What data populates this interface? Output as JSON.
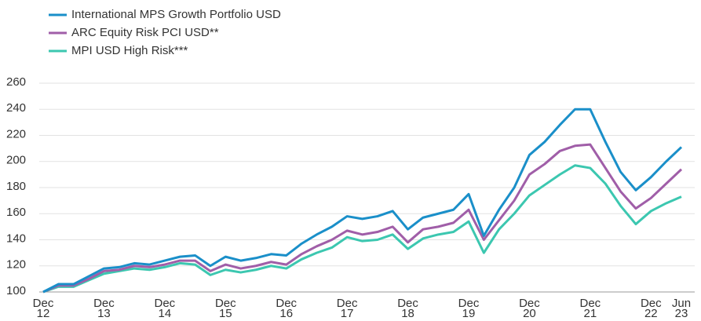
{
  "chart_data": {
    "type": "line",
    "categories": [
      "Dec 12",
      null,
      null,
      null,
      "Dec 13",
      null,
      null,
      null,
      "Dec 14",
      null,
      null,
      null,
      "Dec 15",
      null,
      null,
      null,
      "Dec 16",
      null,
      null,
      null,
      "Dec 17",
      null,
      null,
      null,
      "Dec 18",
      null,
      null,
      null,
      "Dec 19",
      null,
      null,
      null,
      "Dec 20",
      null,
      null,
      null,
      "Dec 21",
      null,
      null,
      null,
      "Dec 22",
      null,
      "Jun 23"
    ],
    "series": [
      {
        "name": "International MPS Growth Portfolio USD",
        "color": "#1a8fc9",
        "values": [
          100,
          106,
          106,
          112,
          118,
          119,
          122,
          121,
          124,
          127,
          128,
          120,
          127,
          124,
          126,
          129,
          128,
          137,
          144,
          150,
          158,
          156,
          158,
          162,
          148,
          157,
          160,
          163,
          175,
          143,
          163,
          180,
          205,
          215,
          228,
          240,
          240,
          215,
          192,
          178,
          188,
          200,
          211
        ]
      },
      {
        "name": "ARC Equity Risk PCI USD**",
        "color": "#a05ea8",
        "values": [
          100,
          105,
          105,
          110,
          116,
          117,
          120,
          119,
          121,
          124,
          124,
          116,
          121,
          118,
          120,
          123,
          121,
          129,
          135,
          140,
          147,
          144,
          146,
          150,
          138,
          148,
          150,
          153,
          163,
          140,
          155,
          170,
          190,
          198,
          208,
          212,
          213,
          195,
          177,
          164,
          172,
          183,
          194
        ]
      },
      {
        "name": "MPI USD High Risk***",
        "color": "#3cc7b0",
        "values": [
          100,
          104,
          104,
          109,
          114,
          116,
          118,
          117,
          119,
          122,
          121,
          113,
          117,
          115,
          117,
          120,
          118,
          125,
          130,
          134,
          142,
          139,
          140,
          144,
          133,
          141,
          144,
          146,
          154,
          130,
          148,
          160,
          174,
          182,
          190,
          197,
          195,
          183,
          166,
          152,
          162,
          168,
          173
        ]
      }
    ],
    "ylim": [
      100,
      260
    ],
    "yticks": [
      100,
      120,
      140,
      160,
      180,
      200,
      220,
      240,
      260
    ],
    "grid": true
  }
}
